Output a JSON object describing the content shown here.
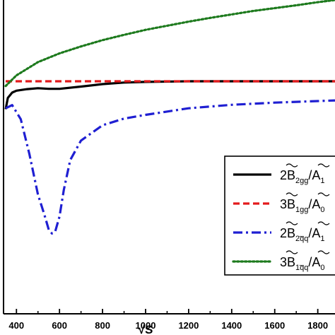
{
  "chart_data": {
    "type": "line",
    "xlabel": "√S",
    "xlim": [
      340,
      1880
    ],
    "ylim": [
      0,
      1
    ],
    "x_ticks": [
      "400",
      "600",
      "800",
      "1000",
      "1200",
      "1400",
      "1600",
      "1800"
    ],
    "grid": false,
    "legend_placement": "bottom-right",
    "series": [
      {
        "name": "2B̃₂gg/Ã₁",
        "legend_main": "2B",
        "legend_sub": "2gg",
        "legend_tail": "/A",
        "legend_tail_sub": "1",
        "color": "#000000",
        "dash": "solid",
        "x": [
          350,
          360,
          380,
          400,
          450,
          500,
          550,
          600,
          700,
          800,
          900,
          1000,
          1200,
          1400,
          1600,
          1800,
          1880
        ],
        "y": [
          0.652,
          0.688,
          0.705,
          0.711,
          0.716,
          0.719,
          0.717,
          0.717,
          0.724,
          0.732,
          0.737,
          0.739,
          0.741,
          0.741,
          0.741,
          0.741,
          0.741
        ]
      },
      {
        "name": "3B̃₁gg/Ã₀",
        "legend_main": "3B",
        "legend_sub": "1gg",
        "legend_tail": "/A",
        "legend_tail_sub": "0",
        "color": "#e31a1c",
        "dash": "dashed",
        "x": [
          350,
          600,
          1000,
          1400,
          1880
        ],
        "y": [
          0.741,
          0.741,
          0.741,
          0.741,
          0.741
        ]
      },
      {
        "name": "2B̃₂q̅q/Ã₁",
        "legend_main": "2B",
        "legend_sub": "2q̅q",
        "legend_tail": "/A",
        "legend_tail_sub": "1",
        "color": "#1f1fd2",
        "dash": "dashdot",
        "x": [
          350,
          380,
          420,
          460,
          500,
          530,
          550,
          565,
          580,
          600,
          620,
          650,
          700,
          800,
          900,
          1000,
          1200,
          1400,
          1600,
          1800,
          1880
        ],
        "y": [
          0.655,
          0.665,
          0.62,
          0.51,
          0.38,
          0.315,
          0.268,
          0.256,
          0.262,
          0.31,
          0.395,
          0.49,
          0.552,
          0.601,
          0.622,
          0.634,
          0.655,
          0.666,
          0.673,
          0.678,
          0.68
        ]
      },
      {
        "name": "3B̃₁q̅q/Ã₀",
        "legend_main": "3B",
        "legend_sub": "1q̅q",
        "legend_tail": "/A",
        "legend_tail_sub": "0",
        "color": "#1d7a1d",
        "dash": "dotted",
        "x": [
          350,
          400,
          500,
          600,
          700,
          800,
          900,
          1000,
          1100,
          1200,
          1300,
          1400,
          1500,
          1600,
          1700,
          1800,
          1880
        ],
        "y": [
          0.726,
          0.76,
          0.802,
          0.83,
          0.852,
          0.872,
          0.889,
          0.905,
          0.918,
          0.931,
          0.943,
          0.954,
          0.965,
          0.974,
          0.983,
          0.993,
          1.0
        ]
      }
    ]
  }
}
